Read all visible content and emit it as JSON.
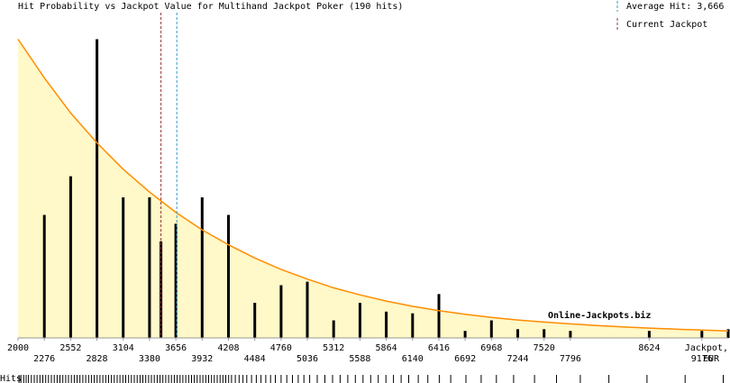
{
  "chart_data": {
    "type": "bar",
    "title": "Hit Probability vs Jackpot Value for Multihand Jackpot Poker (190 hits)",
    "xlabel": "Jackpot,",
    "xunit": "EUR",
    "xlim": [
      2000,
      9452
    ],
    "ylim": [
      0,
      18
    ],
    "x_ticks_upper": [
      2000,
      2552,
      3104,
      3656,
      4208,
      4760,
      5312,
      5864,
      6416,
      6968,
      7520,
      8624
    ],
    "x_ticks_lower": [
      2276,
      2828,
      3380,
      3932,
      4484,
      5036,
      5588,
      6140,
      6692,
      7244,
      7796,
      9176
    ],
    "bars": {
      "x": [
        2276,
        2828,
        3380,
        3656,
        3932,
        4484,
        5036,
        5588,
        6140,
        6692,
        7244,
        7796,
        9176,
        9452,
        2552,
        3104,
        3500,
        4208,
        4760,
        5312,
        5864,
        6416,
        6968,
        7520,
        8624
      ],
      "values": [
        7,
        17,
        8,
        6.5,
        8,
        2,
        3.2,
        2,
        1.4,
        0.4,
        0.5,
        0.4,
        0.4,
        0.5,
        9.2,
        8,
        5.5,
        7,
        3,
        1,
        1.5,
        2.5,
        1,
        0.5,
        0.4
      ]
    },
    "curve": {
      "x": [
        2000,
        2276,
        2552,
        2828,
        3104,
        3380,
        3656,
        3932,
        4208,
        4484,
        4760,
        5036,
        5312,
        5588,
        5864,
        6140,
        6416,
        6692,
        6968,
        7244,
        7520,
        7796,
        8072,
        8348,
        8624,
        8900,
        9176,
        9452
      ],
      "y": [
        17.0,
        14.8,
        12.8,
        11.1,
        9.6,
        8.3,
        7.15,
        6.15,
        5.3,
        4.55,
        3.9,
        3.35,
        2.85,
        2.45,
        2.1,
        1.8,
        1.55,
        1.35,
        1.17,
        1.02,
        0.9,
        0.8,
        0.71,
        0.63,
        0.56,
        0.5,
        0.45,
        0.4
      ]
    },
    "average_hit": 3666,
    "current_jackpot": 3500,
    "legend": {
      "average_label": "Average Hit: 3,666",
      "current_label": "Current Jackpot"
    },
    "hits_label": "Hits",
    "hits_rug_x": [
      2010,
      2030,
      2060,
      2085,
      2110,
      2140,
      2170,
      2200,
      2230,
      2260,
      2290,
      2320,
      2350,
      2380,
      2410,
      2440,
      2470,
      2500,
      2530,
      2560,
      2590,
      2620,
      2650,
      2680,
      2710,
      2740,
      2770,
      2800,
      2830,
      2860,
      2890,
      2920,
      2950,
      2980,
      3010,
      3040,
      3070,
      3100,
      3130,
      3160,
      3190,
      3220,
      3250,
      3280,
      3310,
      3340,
      3370,
      3400,
      3430,
      3460,
      3490,
      3520,
      3550,
      3580,
      3610,
      3640,
      3670,
      3700,
      3730,
      3760,
      3790,
      3820,
      3850,
      3880,
      3910,
      3940,
      3970,
      4000,
      4030,
      4060,
      4090,
      4120,
      4150,
      4180,
      4210,
      4240,
      4280,
      4320,
      4360,
      4400,
      4450,
      4500,
      4550,
      4600,
      4650,
      4700,
      4760,
      4820,
      4880,
      4940,
      5000,
      5060,
      5140,
      5220,
      5300,
      5380,
      5460,
      5540,
      5620,
      5700,
      5780,
      5860,
      5940,
      6020,
      6100,
      6200,
      6300,
      6420,
      6540,
      6700,
      6860,
      7020,
      7200,
      7420,
      7650,
      7900,
      8200,
      8600,
      9000,
      9400
    ],
    "watermark": "Online-Jackpots.biz",
    "colors": {
      "bar": "#000000",
      "curve": "#ff8c00",
      "fill": "#fff8c8",
      "average_line": "#3399cc",
      "current_line": "#993333",
      "axis": "#999999",
      "watermark": "#f6d9a6"
    }
  }
}
